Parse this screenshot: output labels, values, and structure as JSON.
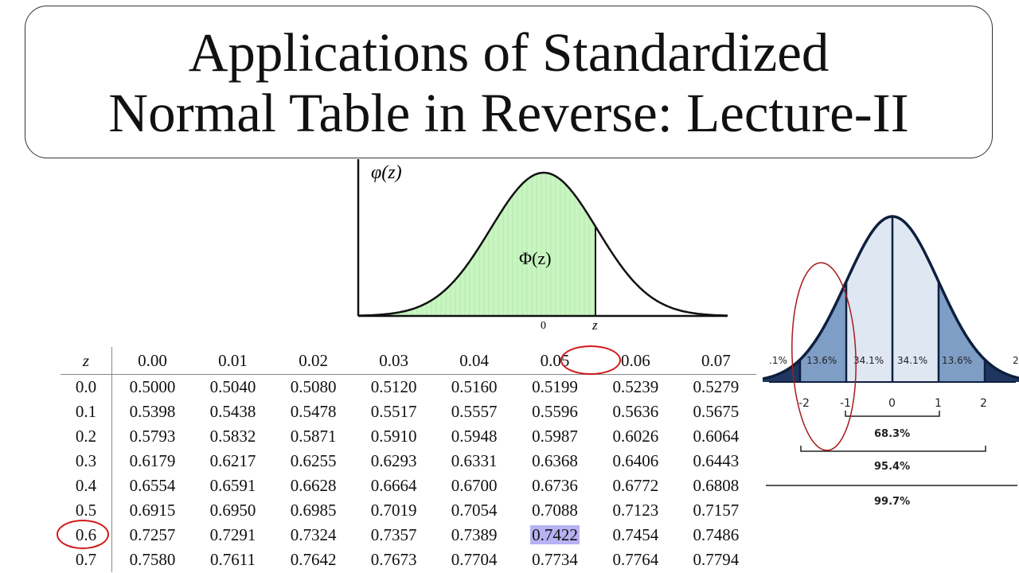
{
  "title": {
    "line1": "Applications of Standardized",
    "line2": "Normal Table in Reverse: Lecture-II"
  },
  "density_figure": {
    "ylabel": "φ(z)",
    "area_label": "Φ(z)",
    "tick_zero": "0",
    "tick_z": "z",
    "fill_color": "#c9f5c2",
    "line_color": "#111111"
  },
  "empirical_figure": {
    "tick_labels": [
      "-2",
      "-1",
      "0",
      "1",
      "2"
    ],
    "region_labels": [
      ".1%",
      "13.6%",
      "34.1%",
      "34.1%",
      "13.6%",
      "2"
    ],
    "bracket_labels": [
      "68.3%",
      "95.4%",
      "99.7%"
    ],
    "fill_light": "#dfe7f3",
    "fill_mid": "#7f9ec6",
    "fill_dark": "#1f3760",
    "line_color": "#0e1f3e"
  },
  "table": {
    "z_header": "z",
    "columns": [
      "0.00",
      "0.01",
      "0.02",
      "0.03",
      "0.04",
      "0.05",
      "0.06",
      "0.07"
    ],
    "rows": [
      {
        "z": "0.0",
        "values": [
          "0.5000",
          "0.5040",
          "0.5080",
          "0.5120",
          "0.5160",
          "0.5199",
          "0.5239",
          "0.5279"
        ]
      },
      {
        "z": "0.1",
        "values": [
          "0.5398",
          "0.5438",
          "0.5478",
          "0.5517",
          "0.5557",
          "0.5596",
          "0.5636",
          "0.5675"
        ]
      },
      {
        "z": "0.2",
        "values": [
          "0.5793",
          "0.5832",
          "0.5871",
          "0.5910",
          "0.5948",
          "0.5987",
          "0.6026",
          "0.6064"
        ]
      },
      {
        "z": "0.3",
        "values": [
          "0.6179",
          "0.6217",
          "0.6255",
          "0.6293",
          "0.6331",
          "0.6368",
          "0.6406",
          "0.6443"
        ]
      },
      {
        "z": "0.4",
        "values": [
          "0.6554",
          "0.6591",
          "0.6628",
          "0.6664",
          "0.6700",
          "0.6736",
          "0.6772",
          "0.6808"
        ]
      },
      {
        "z": "0.5",
        "values": [
          "0.6915",
          "0.6950",
          "0.6985",
          "0.7019",
          "0.7054",
          "0.7088",
          "0.7123",
          "0.7157"
        ]
      },
      {
        "z": "0.6",
        "values": [
          "0.7257",
          "0.7291",
          "0.7324",
          "0.7357",
          "0.7389",
          "0.7422",
          "0.7454",
          "0.7486"
        ]
      },
      {
        "z": "0.7",
        "values": [
          "0.7580",
          "0.7611",
          "0.7642",
          "0.7673",
          "0.7704",
          "0.7734",
          "0.7764",
          "0.7794"
        ]
      }
    ],
    "highlight_value": "0.7422",
    "highlight_color": "#b7b2f2",
    "circle_color": "#d11a1a"
  }
}
